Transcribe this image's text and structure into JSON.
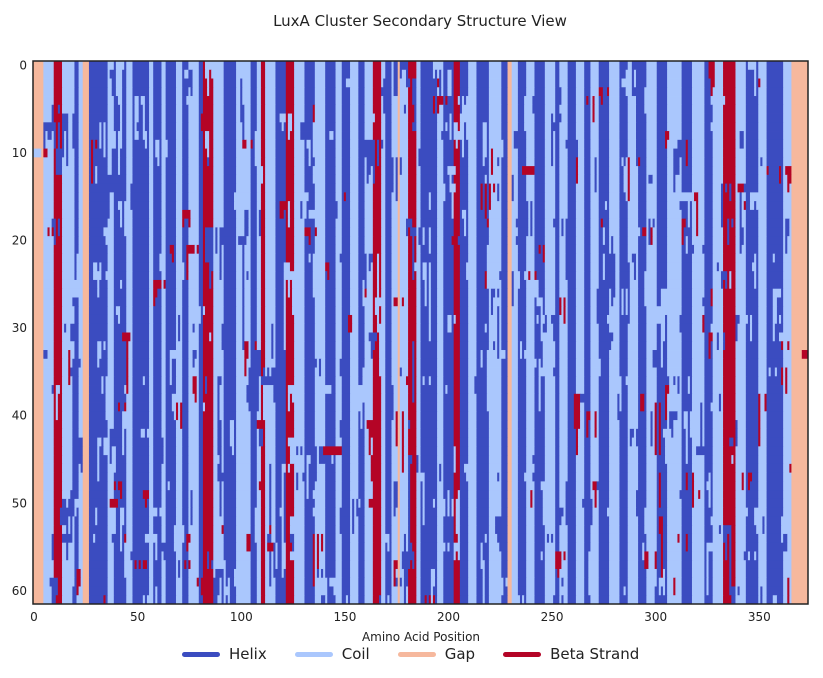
{
  "chart_data": {
    "type": "heatmap",
    "title": "LuxA Cluster Secondary Structure View",
    "xlabel": "Amino Acid Position",
    "ylabel": "",
    "xlim": [
      0,
      374
    ],
    "ylim": [
      62,
      0
    ],
    "n_sequences": 62,
    "n_positions": 374,
    "x_ticks": [
      0,
      50,
      100,
      150,
      200,
      250,
      300,
      350
    ],
    "y_ticks": [
      0,
      10,
      20,
      30,
      40,
      50,
      60
    ],
    "categories": [
      "Helix",
      "Coil",
      "Gap",
      "Beta Strand"
    ],
    "colors": {
      "Helix": "#3b4cc0",
      "Coil": "#aac7fd",
      "Gap": "#f6b89d",
      "Beta Strand": "#b40426"
    },
    "legend": [
      {
        "label": "Helix",
        "color": "#3b4cc0"
      },
      {
        "label": "Coil",
        "color": "#aac7fd"
      },
      {
        "label": "Gap",
        "color": "#f6b89d"
      },
      {
        "label": "Beta Strand",
        "color": "#b40426"
      }
    ],
    "column_segments": [
      [
        0,
        5,
        "Gap"
      ],
      [
        5,
        10,
        "Coil"
      ],
      [
        10,
        14,
        "Beta Strand"
      ],
      [
        14,
        20,
        "Coil"
      ],
      [
        20,
        22,
        "Helix"
      ],
      [
        22,
        24,
        "Coil"
      ],
      [
        24,
        27,
        "Gap"
      ],
      [
        27,
        36,
        "Helix"
      ],
      [
        36,
        39,
        "Coil"
      ],
      [
        39,
        45,
        "Helix"
      ],
      [
        45,
        48,
        "Coil"
      ],
      [
        48,
        56,
        "Helix"
      ],
      [
        56,
        58,
        "Coil"
      ],
      [
        58,
        62,
        "Helix"
      ],
      [
        62,
        64,
        "Coil"
      ],
      [
        64,
        69,
        "Helix"
      ],
      [
        69,
        72,
        "Coil"
      ],
      [
        72,
        75,
        "Helix"
      ],
      [
        75,
        80,
        "Coil"
      ],
      [
        80,
        82,
        "Helix"
      ],
      [
        82,
        87,
        "Beta Strand"
      ],
      [
        87,
        92,
        "Coil"
      ],
      [
        92,
        98,
        "Helix"
      ],
      [
        98,
        105,
        "Coil"
      ],
      [
        105,
        108,
        "Helix"
      ],
      [
        108,
        110,
        "Coil"
      ],
      [
        110,
        112,
        "Beta Strand"
      ],
      [
        112,
        117,
        "Coil"
      ],
      [
        117,
        122,
        "Helix"
      ],
      [
        122,
        126,
        "Beta Strand"
      ],
      [
        126,
        131,
        "Coil"
      ],
      [
        131,
        136,
        "Helix"
      ],
      [
        136,
        141,
        "Coil"
      ],
      [
        141,
        146,
        "Helix"
      ],
      [
        146,
        149,
        "Coil"
      ],
      [
        149,
        153,
        "Helix"
      ],
      [
        153,
        157,
        "Coil"
      ],
      [
        157,
        160,
        "Helix"
      ],
      [
        160,
        164,
        "Coil"
      ],
      [
        164,
        168,
        "Beta Strand"
      ],
      [
        168,
        170,
        "Coil"
      ],
      [
        170,
        173,
        "Helix"
      ],
      [
        173,
        176,
        "Coil"
      ],
      [
        176,
        177,
        "Gap"
      ],
      [
        177,
        181,
        "Coil"
      ],
      [
        181,
        185,
        "Beta Strand"
      ],
      [
        185,
        187,
        "Coil"
      ],
      [
        187,
        195,
        "Helix"
      ],
      [
        195,
        198,
        "Coil"
      ],
      [
        198,
        203,
        "Helix"
      ],
      [
        203,
        206,
        "Beta Strand"
      ],
      [
        206,
        210,
        "Helix"
      ],
      [
        210,
        214,
        "Coil"
      ],
      [
        214,
        220,
        "Helix"
      ],
      [
        220,
        226,
        "Coil"
      ],
      [
        226,
        229,
        "Helix"
      ],
      [
        229,
        231,
        "Gap"
      ],
      [
        231,
        234,
        "Coil"
      ],
      [
        234,
        238,
        "Helix"
      ],
      [
        238,
        242,
        "Coil"
      ],
      [
        242,
        247,
        "Helix"
      ],
      [
        247,
        252,
        "Coil"
      ],
      [
        252,
        254,
        "Helix"
      ],
      [
        254,
        258,
        "Coil"
      ],
      [
        258,
        262,
        "Helix"
      ],
      [
        262,
        266,
        "Coil"
      ],
      [
        266,
        269,
        "Helix"
      ],
      [
        269,
        273,
        "Coil"
      ],
      [
        273,
        278,
        "Helix"
      ],
      [
        278,
        283,
        "Coil"
      ],
      [
        283,
        287,
        "Helix"
      ],
      [
        287,
        292,
        "Coil"
      ],
      [
        292,
        296,
        "Helix"
      ],
      [
        296,
        301,
        "Coil"
      ],
      [
        301,
        306,
        "Helix"
      ],
      [
        306,
        313,
        "Coil"
      ],
      [
        313,
        318,
        "Helix"
      ],
      [
        318,
        324,
        "Coil"
      ],
      [
        324,
        328,
        "Helix"
      ],
      [
        328,
        333,
        "Coil"
      ],
      [
        333,
        339,
        "Beta Strand"
      ],
      [
        339,
        344,
        "Coil"
      ],
      [
        344,
        350,
        "Helix"
      ],
      [
        350,
        354,
        "Coil"
      ],
      [
        354,
        362,
        "Helix"
      ],
      [
        362,
        366,
        "Coil"
      ],
      [
        366,
        374,
        "Gap"
      ]
    ],
    "cell_overrides": [
      {
        "row": 10,
        "x0": 0,
        "x1": 4,
        "state": "Coil"
      },
      {
        "row": 10,
        "x0": 5,
        "x1": 7,
        "state": "Beta Strand"
      },
      {
        "row": 12,
        "x0": 236,
        "x1": 242,
        "state": "Beta Strand"
      },
      {
        "row": 14,
        "x0": 340,
        "x1": 343,
        "state": "Beta Strand"
      },
      {
        "row": 33,
        "x0": 371,
        "x1": 374,
        "state": "Beta Strand"
      },
      {
        "row": 36,
        "x0": 110,
        "x1": 118,
        "state": "Helix"
      },
      {
        "row": 41,
        "x0": 108,
        "x1": 112,
        "state": "Beta Strand"
      },
      {
        "row": 44,
        "x0": 140,
        "x1": 149,
        "state": "Beta Strand"
      },
      {
        "row": 50,
        "x0": 37,
        "x1": 41,
        "state": "Beta Strand"
      },
      {
        "row": 55,
        "x0": 113,
        "x1": 116,
        "state": "Beta Strand"
      }
    ],
    "row_variation_strength": 0.38
  }
}
